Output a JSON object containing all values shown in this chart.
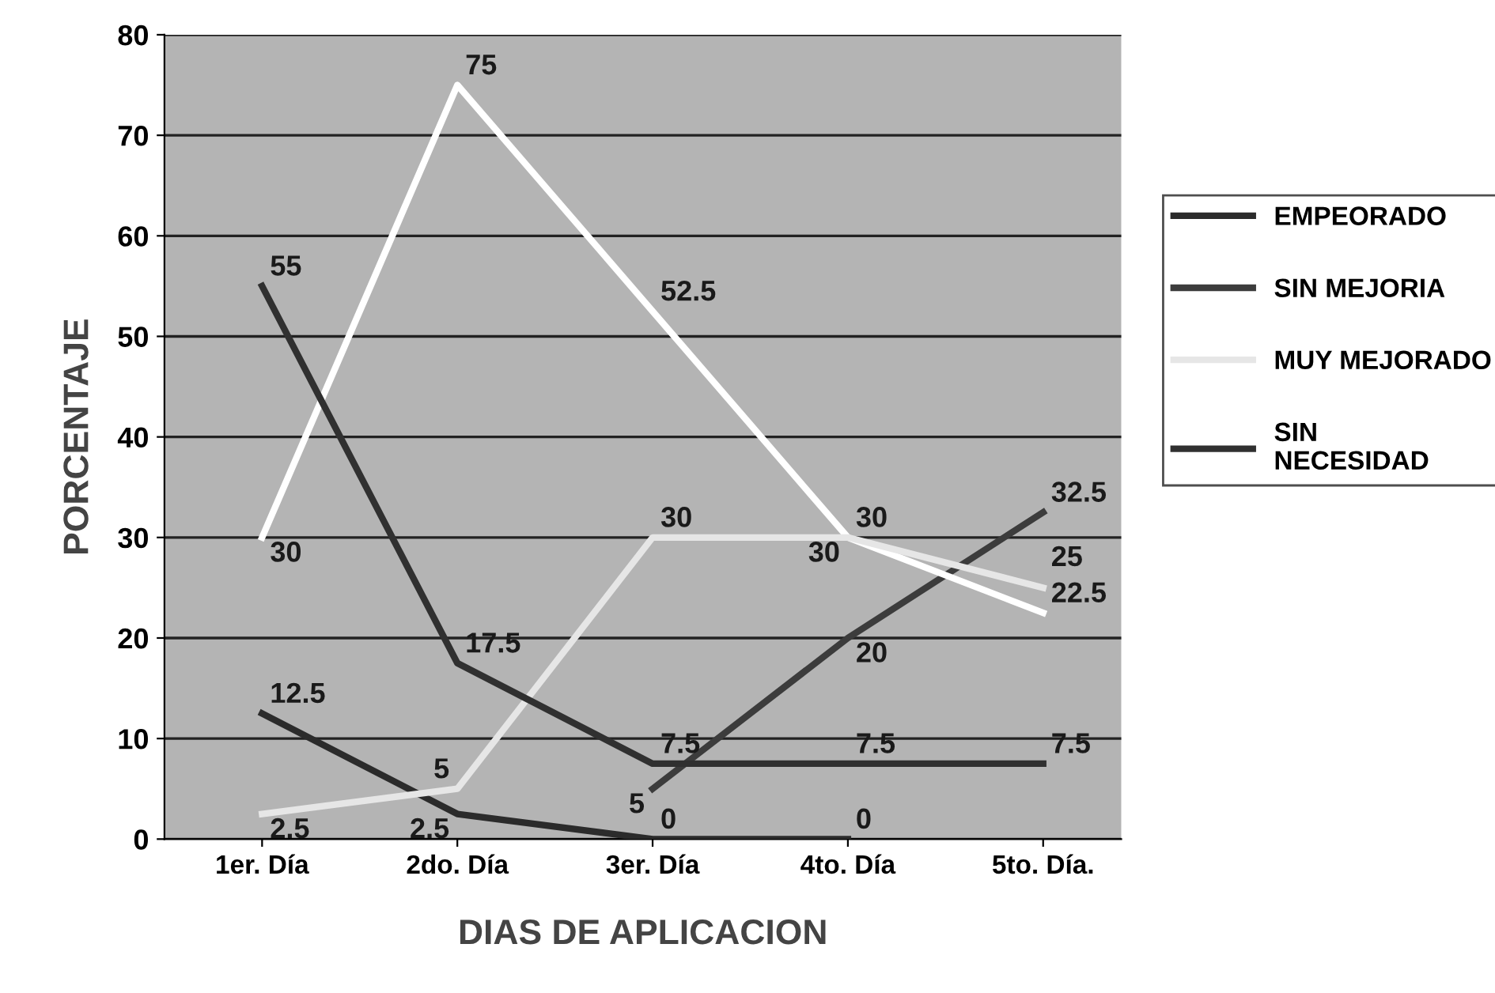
{
  "chart_data": {
    "type": "line",
    "xlabel": "DIAS DE APLICACION",
    "ylabel": "PORCENTAJE",
    "categories": [
      "1er. Día",
      "2do. Día",
      "3er. Día",
      "4to. Día",
      "5to. Día."
    ],
    "series": [
      {
        "name": "EMPEORADO",
        "color": "#2b2b2b",
        "values": [
          12.5,
          2.5,
          0,
          0,
          null
        ]
      },
      {
        "name": "SIN MEJORIA",
        "color": "#3c3c3c",
        "values": [
          null,
          null,
          5,
          20,
          32.5
        ]
      },
      {
        "color": "#ffffff",
        "values": [
          30,
          75,
          52.5,
          30,
          22.5
        ]
      },
      {
        "name": "MUY MEJORADO",
        "color": "#e6e6e6",
        "values": [
          2.5,
          5,
          30,
          30,
          25
        ]
      },
      {
        "name": "SIN NECESIDAD",
        "color": "#303030",
        "values": [
          55,
          17.5,
          7.5,
          7.5,
          7.5
        ]
      }
    ],
    "ylim": [
      0,
      80
    ],
    "yticks": [
      0,
      10,
      20,
      30,
      40,
      50,
      60,
      70,
      80
    ],
    "grid": "y",
    "legend": "right",
    "data_labels": true,
    "marker": "none",
    "line_style": "solid"
  }
}
